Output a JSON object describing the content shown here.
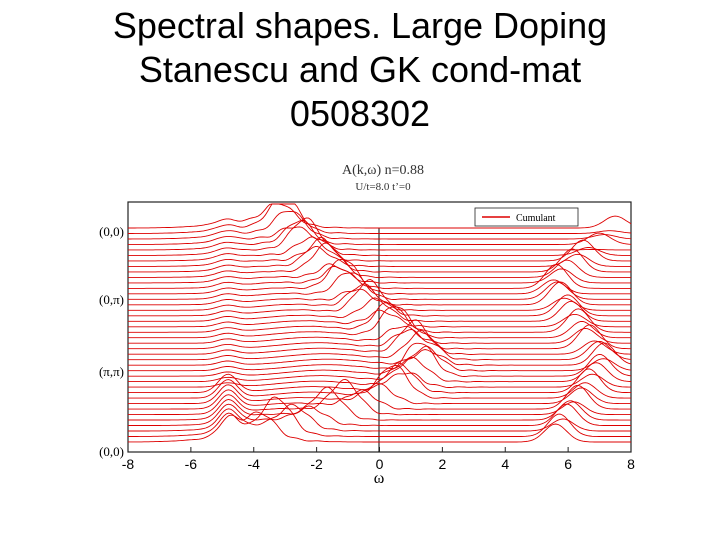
{
  "slide": {
    "title_lines": [
      "Spectral shapes. Large Doping",
      "Stanescu and GK cond-mat",
      "0508302"
    ]
  },
  "chart_data": {
    "type": "line",
    "title": "A(k,ω) n=0.88",
    "subtitle": "U/t=8.0 t’=0",
    "xlabel": "ω",
    "ylabel": "",
    "xlim": [
      -8,
      8
    ],
    "xticks": [
      -8,
      -6,
      -4,
      -2,
      0,
      2,
      4,
      6,
      8
    ],
    "legend": {
      "label": "Cumulant",
      "placement": "top-right"
    },
    "k_path_labels": [
      "(0,0)",
      "(0,π)",
      "(π,π)",
      "(0,0)"
    ],
    "series_count": 40,
    "line_color": "#dd0000",
    "grid": false,
    "peak_tracks": [
      {
        "name": "quasiparticle-band",
        "omega_at_path_start": -3.2,
        "omega_at_0pi": -1.2,
        "omega_at_pipi": 1.6,
        "omega_at_path_end": -3.8
      },
      {
        "name": "lower-hubbard-band",
        "omega_at_path_start": -4.9,
        "omega_at_path_end": -4.8
      },
      {
        "name": "upper-hubbard-band",
        "omega_at_path_start": 7.5,
        "omega_at_0pi": 5.5,
        "omega_at_pipi": 7.2,
        "omega_at_path_end": 5.6
      }
    ]
  }
}
